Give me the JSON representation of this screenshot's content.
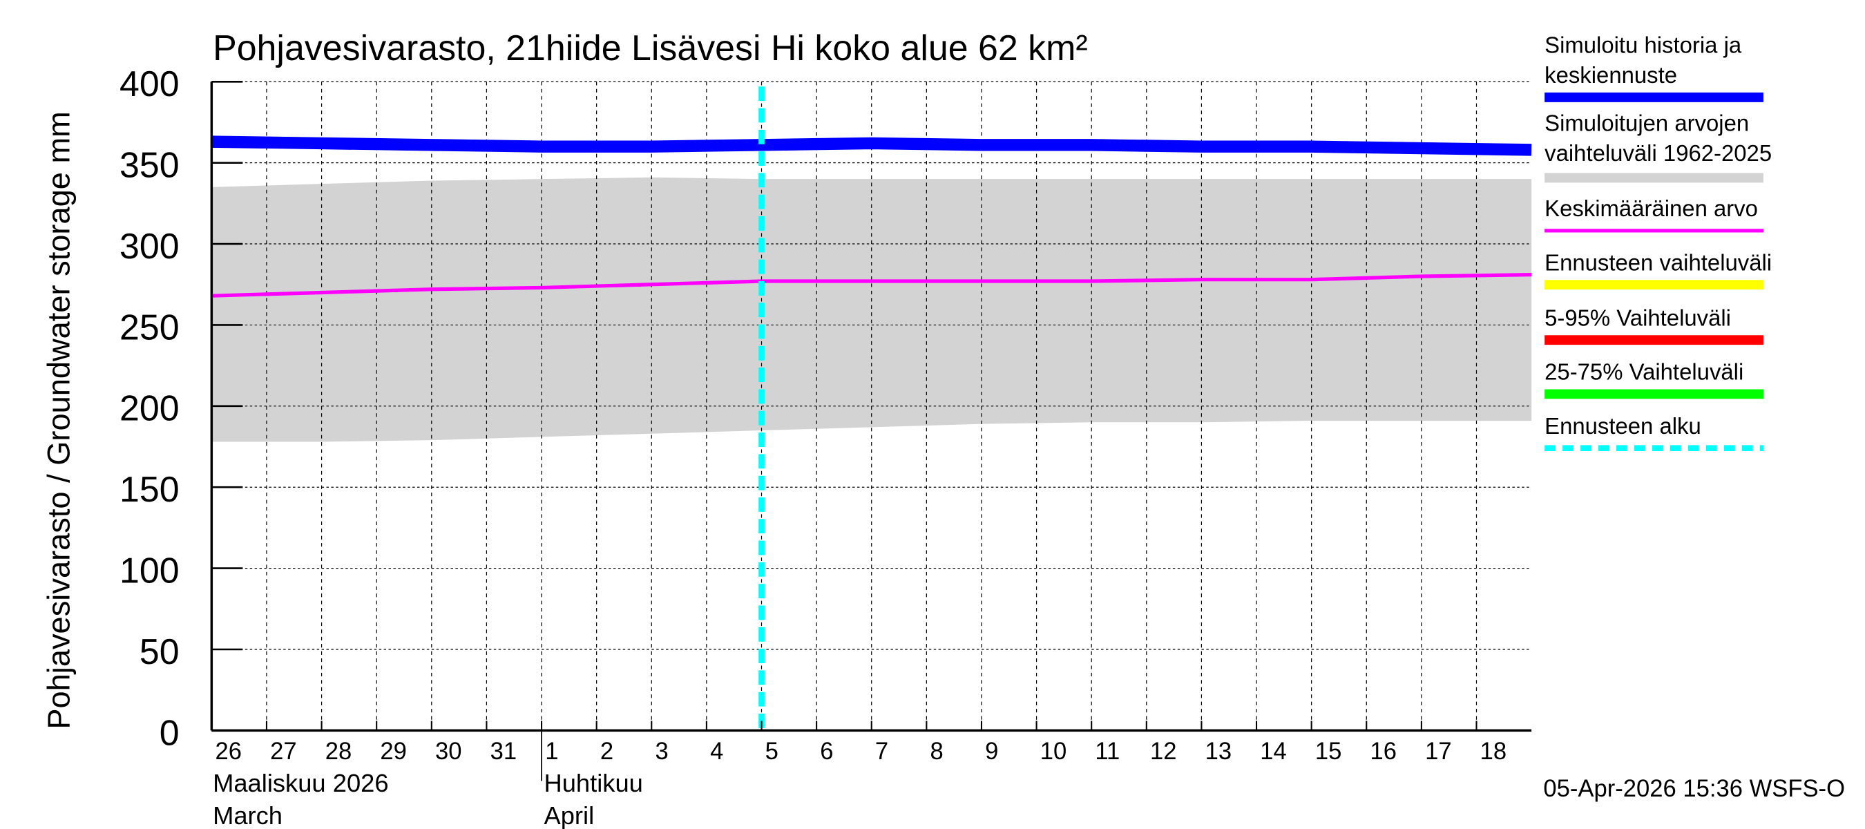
{
  "chart_data": {
    "type": "line",
    "title": "Pohjavesivarasto, 21hiide Lisävesi Hi koko alue 62 km²",
    "ylabel": "Pohjavesivarasto / Groundwater storage   mm",
    "ylim": [
      0,
      400
    ],
    "yticks": [
      0,
      50,
      100,
      150,
      200,
      250,
      300,
      350,
      400
    ],
    "xlim": [
      0,
      24
    ],
    "xtick_labels": [
      "26",
      "27",
      "28",
      "29",
      "30",
      "31",
      "1",
      "2",
      "3",
      "4",
      "5",
      "6",
      "7",
      "8",
      "9",
      "10",
      "11",
      "12",
      "13",
      "14",
      "15",
      "16",
      "17",
      "18"
    ],
    "month_labels": [
      {
        "day_index": 0,
        "line1": "Maaliskuu 2026",
        "line2": "March"
      },
      {
        "day_index": 6,
        "line1": "Huhtikuu",
        "line2": "April"
      }
    ],
    "forecast_start_index": 10,
    "x": [
      0,
      2,
      4,
      6,
      8,
      10,
      12,
      14,
      16,
      18,
      20,
      22,
      24
    ],
    "series": [
      {
        "name": "Simuloitu historia ja keskiennuste",
        "color": "#0000ff",
        "kind": "line",
        "values": [
          363,
          362,
          361,
          360,
          360,
          361,
          362,
          361,
          361,
          360,
          360,
          359,
          358
        ]
      },
      {
        "name": "Simuloitujen arvojen vaihteluväli 1962-2025",
        "color": "#d3d3d3",
        "kind": "band",
        "upper": [
          335,
          337,
          339,
          340,
          341,
          340,
          340,
          340,
          340,
          340,
          340,
          340,
          340
        ],
        "lower": [
          178,
          178,
          179,
          181,
          183,
          185,
          187,
          189,
          190,
          190,
          191,
          191,
          191
        ]
      },
      {
        "name": "Keskimääräinen arvo",
        "color": "#ff00ff",
        "kind": "line",
        "values": [
          268,
          270,
          272,
          273,
          275,
          277,
          277,
          277,
          277,
          278,
          278,
          280,
          281
        ]
      }
    ],
    "legend": [
      {
        "label": "Simuloitu historia ja keskiennuste",
        "color": "#0000ff",
        "style": "thick"
      },
      {
        "label": "Simuloitujen arvojen vaihteluväli 1962-2025",
        "color": "#d3d3d3",
        "style": "thick"
      },
      {
        "label": "Keskimääräinen arvo",
        "color": "#ff00ff",
        "style": "thin"
      },
      {
        "label": "Ennusteen vaihteluväli",
        "color": "#ffff00",
        "style": "thick"
      },
      {
        "label": "5-95% Vaihteluväli",
        "color": "#ff0000",
        "style": "thick"
      },
      {
        "label": "25-75% Vaihteluväli",
        "color": "#00ff00",
        "style": "thick"
      },
      {
        "label": "Ennusteen alku",
        "color": "#00ffff",
        "style": "dashed"
      }
    ],
    "legend_position": "right",
    "grid": true,
    "timestamp": "05-Apr-2026 15:36 WSFS-O"
  }
}
